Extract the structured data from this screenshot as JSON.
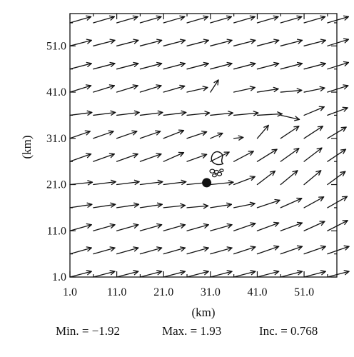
{
  "chart_data": {
    "type": "vector-field",
    "xlabel": "(km)",
    "ylabel": "(km)",
    "xlim": [
      1.0,
      58.0
    ],
    "ylim": [
      1.0,
      58.0
    ],
    "x_tick_labels": [
      "1.0",
      "11.0",
      "21.0",
      "31.0",
      "41.0",
      "51.0"
    ],
    "y_tick_labels": [
      "1.0",
      "11.0",
      "21.0",
      "31.0",
      "41.0",
      "51.0"
    ],
    "grid_x": [
      1.0,
      6.0,
      11.0,
      16.0,
      21.0,
      26.0,
      31.0,
      36.0,
      41.0,
      46.0,
      51.0,
      56.0
    ],
    "grid_y": [
      1.0,
      6.0,
      11.0,
      16.0,
      21.0,
      26.0,
      31.0,
      36.0,
      41.0,
      46.0,
      51.0,
      56.0
    ],
    "rows_from_bottom": [
      [
        [
          4.6,
          1.2
        ],
        [
          4.6,
          1.2
        ],
        [
          4.6,
          1.2
        ],
        [
          4.6,
          1.2
        ],
        [
          4.6,
          1.2
        ],
        [
          4.6,
          1.2
        ],
        [
          4.6,
          1.2
        ],
        [
          4.6,
          1.2
        ],
        [
          4.6,
          1.2
        ],
        [
          4.6,
          1.2
        ],
        [
          4.6,
          1.2
        ],
        [
          4.6,
          1.2
        ]
      ],
      [
        [
          4.6,
          1.3
        ],
        [
          4.6,
          1.3
        ],
        [
          4.6,
          1.3
        ],
        [
          4.6,
          1.3
        ],
        [
          4.6,
          1.3
        ],
        [
          4.6,
          1.3
        ],
        [
          4.6,
          1.3
        ],
        [
          4.6,
          1.5
        ],
        [
          4.6,
          1.6
        ],
        [
          4.6,
          1.6
        ],
        [
          4.6,
          1.6
        ],
        [
          4.6,
          1.6
        ]
      ],
      [
        [
          4.6,
          1.3
        ],
        [
          4.6,
          1.3
        ],
        [
          4.6,
          1.3
        ],
        [
          4.6,
          1.3
        ],
        [
          4.6,
          1.3
        ],
        [
          4.6,
          1.3
        ],
        [
          4.6,
          1.3
        ],
        [
          4.6,
          1.6
        ],
        [
          4.6,
          1.7
        ],
        [
          4.6,
          1.7
        ],
        [
          4.4,
          2.0
        ],
        [
          4.3,
          2.2
        ]
      ],
      [
        [
          4.7,
          0.7
        ],
        [
          4.7,
          0.7
        ],
        [
          4.7,
          0.7
        ],
        [
          4.7,
          0.7
        ],
        [
          4.6,
          0.5
        ],
        [
          4.5,
          0.4
        ],
        [
          4.5,
          0.7
        ],
        [
          4.5,
          0.9
        ],
        [
          4.8,
          1.6
        ],
        [
          4.5,
          2.0
        ],
        [
          4.2,
          2.3
        ],
        [
          4.2,
          2.4
        ]
      ],
      [
        [
          4.8,
          0.5
        ],
        [
          4.8,
          0.6
        ],
        [
          4.8,
          0.6
        ],
        [
          4.8,
          0.6
        ],
        [
          4.8,
          0.6
        ],
        [
          4.9,
          0.5
        ],
        [
          4.9,
          0.5
        ],
        [
          4.5,
          1.7
        ],
        [
          3.8,
          2.9
        ],
        [
          3.6,
          3.0
        ],
        [
          3.6,
          3.0
        ],
        [
          3.8,
          2.8
        ]
      ],
      [
        [
          4.5,
          1.6
        ],
        [
          4.5,
          1.6
        ],
        [
          4.5,
          1.6
        ],
        [
          4.5,
          1.6
        ],
        [
          4.3,
          1.9
        ],
        [
          4.2,
          1.5
        ],
        [
          4.0,
          2.0
        ],
        [
          4.2,
          2.2
        ],
        [
          4.2,
          2.6
        ],
        [
          3.9,
          2.8
        ],
        [
          3.8,
          2.9
        ],
        [
          3.9,
          2.6
        ]
      ],
      [
        [
          4.3,
          1.5
        ],
        [
          4.3,
          1.5
        ],
        [
          4.3,
          1.5
        ],
        [
          4.3,
          1.5
        ],
        [
          4.3,
          1.7
        ],
        [
          4.2,
          1.4
        ],
        [
          2.6,
          1.1
        ],
        [
          2.0,
          0.2
        ],
        [
          2.4,
          2.8
        ],
        [
          3.9,
          2.6
        ],
        [
          4.0,
          2.6
        ],
        [
          4.0,
          2.4
        ]
      ],
      [
        [
          4.7,
          0.6
        ],
        [
          4.7,
          0.6
        ],
        [
          4.8,
          0.6
        ],
        [
          4.8,
          0.6
        ],
        [
          4.8,
          0.6
        ],
        [
          4.8,
          0.5
        ],
        [
          4.8,
          0.5
        ],
        [
          5.2,
          0.5
        ],
        [
          5.3,
          0.3
        ],
        [
          4.0,
          -0.9
        ],
        [
          4.3,
          1.8
        ],
        [
          4.3,
          1.6
        ]
      ],
      [
        [
          4.5,
          1.4
        ],
        [
          4.5,
          1.4
        ],
        [
          4.5,
          1.4
        ],
        [
          4.5,
          1.4
        ],
        [
          4.5,
          1.3
        ],
        [
          4.4,
          1.0
        ],
        [
          1.7,
          2.6
        ],
        [
          4.5,
          1.0
        ],
        [
          4.5,
          0.7
        ],
        [
          4.5,
          0.4
        ],
        [
          4.4,
          0.9
        ],
        [
          4.4,
          1.4
        ]
      ],
      [
        [
          4.6,
          1.2
        ],
        [
          4.6,
          1.2
        ],
        [
          4.6,
          1.2
        ],
        [
          4.6,
          1.2
        ],
        [
          4.6,
          1.2
        ],
        [
          4.6,
          1.2
        ],
        [
          4.6,
          1.2
        ],
        [
          4.6,
          1.2
        ],
        [
          4.6,
          1.2
        ],
        [
          4.6,
          1.2
        ],
        [
          4.6,
          1.2
        ],
        [
          4.5,
          1.4
        ]
      ],
      [
        [
          4.6,
          1.2
        ],
        [
          4.6,
          1.2
        ],
        [
          4.6,
          1.2
        ],
        [
          4.6,
          1.2
        ],
        [
          4.6,
          1.2
        ],
        [
          4.6,
          1.2
        ],
        [
          4.6,
          1.2
        ],
        [
          4.6,
          1.2
        ],
        [
          4.6,
          1.2
        ],
        [
          4.6,
          1.2
        ],
        [
          4.6,
          1.2
        ],
        [
          4.5,
          1.4
        ]
      ],
      [
        [
          4.5,
          1.3
        ],
        [
          4.5,
          1.3
        ],
        [
          4.5,
          1.3
        ],
        [
          4.5,
          1.3
        ],
        [
          4.5,
          1.3
        ],
        [
          4.5,
          1.3
        ],
        [
          4.5,
          1.3
        ],
        [
          4.5,
          1.3
        ],
        [
          4.5,
          1.3
        ],
        [
          4.5,
          1.3
        ],
        [
          4.5,
          1.3
        ],
        [
          4.5,
          1.3
        ]
      ]
    ],
    "contour_features": [
      {
        "name": "filled-dot",
        "x": 30.2,
        "y": 21.4
      },
      {
        "name": "closed-contour",
        "x": 32.3,
        "y": 26.9
      },
      {
        "name": "small-contour-cluster",
        "x": 32.0,
        "y": 23.6
      }
    ],
    "annotation": {
      "min": "Min. = −1.92",
      "max": "Max. = 1.93",
      "inc": "Inc. = 0.768"
    }
  }
}
